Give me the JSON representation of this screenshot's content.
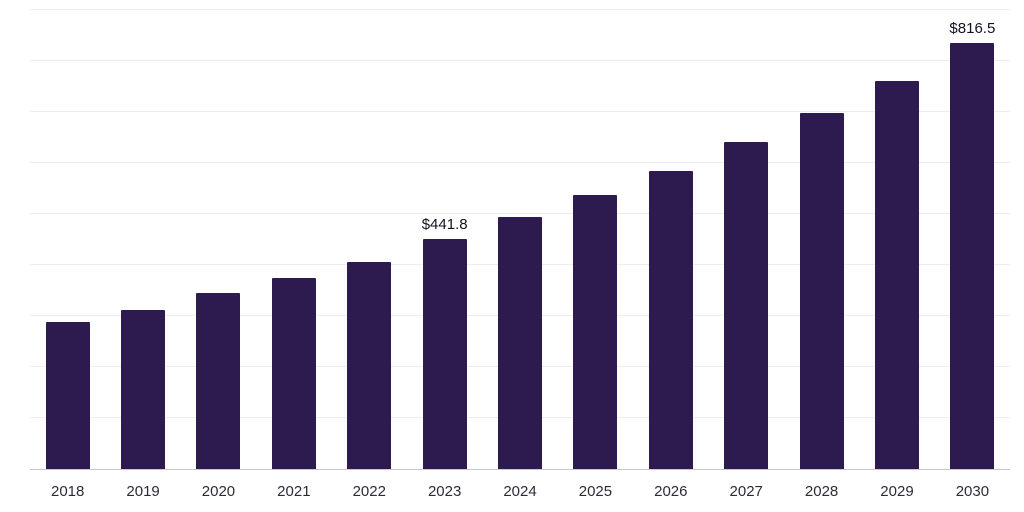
{
  "chart_data": {
    "type": "bar",
    "title": "",
    "xlabel": "",
    "ylabel": "",
    "categories": [
      "2018",
      "2019",
      "2020",
      "2021",
      "2022",
      "2023",
      "2024",
      "2025",
      "2026",
      "2027",
      "2028",
      "2029",
      "2030"
    ],
    "values": [
      282,
      304,
      338,
      366,
      397,
      441.8,
      483,
      525,
      572,
      626,
      682,
      744,
      816.5
    ],
    "data_labels": [
      {
        "category": "2023",
        "text": "$441.8"
      },
      {
        "category": "2030",
        "text": "$816.5"
      }
    ],
    "ylim": [
      0,
      880
    ],
    "grid": "horizontal",
    "gridline_count": 9,
    "legend": "none",
    "bar_color": "#2d1a4e",
    "gridline_color": "#ededf0",
    "axis_line_color": "#c9c9cd",
    "label_color": "#121220",
    "background": "#ffffff"
  }
}
